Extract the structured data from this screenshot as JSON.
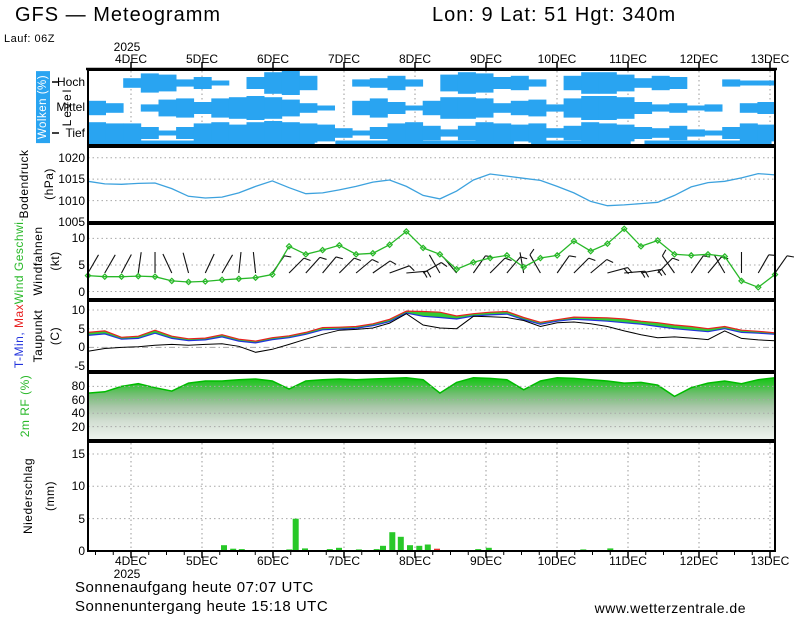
{
  "header": {
    "title": "GFS — Meteogramm",
    "location": "Lon: 9 Lat: 51 Hgt: 340m",
    "run": "Lauf: 06Z"
  },
  "footer": {
    "sunrise": "Sonnenaufgang heute 07:07 UTC",
    "sunset": "Sonnenuntergang heute 15:18 UTC",
    "website": "www.wetterzentrale.de"
  },
  "time_axis": {
    "year": "2025",
    "dates": [
      "4DEC",
      "5DEC",
      "6DEC",
      "7DEC",
      "8DEC",
      "9DEC",
      "10DEC",
      "11DEC",
      "12DEC",
      "13DEC"
    ],
    "start_day": 3.394,
    "end_day": 13.07
  },
  "colors": {
    "cloud_blue": "#29A4F1",
    "pressure_line": "#3DA2DE",
    "green": "#28B828",
    "temp_fill": "#33CC33",
    "tmax_red": "#E82020",
    "tmin_blue": "#2233DD",
    "dew_black": "#000000",
    "precip_green": "#28C828",
    "precip_red": "#E83030",
    "grid_gray": "#A8A8A8"
  },
  "chart_data": [
    {
      "id": "clouds",
      "type": "heatmap",
      "title": "Wolken (%)",
      "ylabel": "Level",
      "categories_y": [
        "Hoch",
        "Mittel",
        "Tief"
      ],
      "series": [
        {
          "name": "Hoch",
          "values": [
            0,
            0,
            0.4,
            0.8,
            0.7,
            0.3,
            0.5,
            0.2,
            0,
            0.5,
            0.9,
            1,
            0.6,
            0,
            0,
            0.3,
            0.4,
            0.6,
            0.3,
            0,
            0.7,
            0.9,
            0.8,
            0.5,
            0.6,
            0.3,
            0,
            0.6,
            0.9,
            0.9,
            0.7,
            0.4,
            0.6,
            0.5,
            0,
            0,
            0.3,
            0.1,
            0.1
          ]
        },
        {
          "name": "Mittel",
          "values": [
            0.6,
            0.4,
            0,
            0.3,
            0.7,
            0.8,
            0.5,
            0.8,
            0.9,
            1,
            0.9,
            0.7,
            0.4,
            0.2,
            0,
            0.6,
            0.8,
            0.5,
            0.2,
            0.6,
            0.9,
            0.9,
            0.8,
            0.4,
            0.6,
            0.7,
            0.3,
            0.8,
            1,
            1,
            0.9,
            0.5,
            0.3,
            0.4,
            0.2,
            0.3,
            0,
            0.4,
            0.5
          ]
        },
        {
          "name": "Tief",
          "values": [
            0.9,
            0.8,
            0.8,
            0.5,
            0.2,
            0.5,
            0.8,
            0.9,
            0.7,
            0.9,
            1,
            0.9,
            0.8,
            0.7,
            0.4,
            0.2,
            0.5,
            0.8,
            0.9,
            0.6,
            0.3,
            0.6,
            0.9,
            0.8,
            0.7,
            0.8,
            0.4,
            0.6,
            0.9,
            0.8,
            0.7,
            0.5,
            0.4,
            0.6,
            0.3,
            0.2,
            0.5,
            0.8,
            0.7
          ]
        }
      ],
      "bottom_strip_segments": [
        [
          0,
          0.33
        ],
        [
          0.36,
          0.62
        ],
        [
          0.645,
          0.79
        ],
        [
          0.81,
          0.995
        ]
      ]
    },
    {
      "id": "pressure",
      "type": "line",
      "ylabel": "Bodendruck",
      "unit": "(hPa)",
      "yticks": [
        1020,
        1015,
        1010,
        1005
      ],
      "ylim": [
        1005,
        1022.5
      ],
      "values": [
        1014.5,
        1013.9,
        1013.8,
        1014.0,
        1014.1,
        1012.8,
        1011.0,
        1010.6,
        1010.8,
        1011.8,
        1013.3,
        1014.6,
        1013.0,
        1011.6,
        1011.8,
        1012.5,
        1013.3,
        1014.3,
        1014.8,
        1013.3,
        1011.2,
        1010.4,
        1012.2,
        1014.8,
        1016.2,
        1015.7,
        1015.2,
        1014.7,
        1013.3,
        1011.8,
        1009.8,
        1008.8,
        1009.0,
        1009.3,
        1009.6,
        1011.2,
        1013.2,
        1014.2,
        1014.5,
        1015.3,
        1016.3,
        1016.0
      ]
    },
    {
      "id": "wind",
      "type": "line",
      "ylabel_speed": "Wind Geschwi.",
      "ylabel_barbs": "Windfahnen",
      "unit": "(kt)",
      "yticks": [
        10,
        5,
        0
      ],
      "ylim": [
        -1.4,
        12.7
      ],
      "values": [
        3.0,
        2.8,
        2.8,
        2.9,
        2.8,
        2.0,
        1.8,
        1.9,
        2.2,
        2.4,
        2.6,
        3.2,
        8.5,
        7.0,
        7.8,
        8.7,
        7.0,
        7.2,
        8.8,
        11.3,
        8.2,
        7.0,
        4.2,
        5.5,
        6.3,
        6.8,
        4.6,
        6.3,
        6.8,
        9.5,
        7.6,
        9.0,
        11.8,
        8.5,
        9.6,
        7.0,
        6.8,
        7.0,
        6.6,
        2.0,
        0.8,
        3.2
      ],
      "barb_angles": [
        30,
        30,
        28,
        8,
        0,
        -25,
        -15,
        25,
        30,
        6,
        -6,
        35,
        45,
        42,
        40,
        45,
        50,
        55,
        70,
        85,
        60,
        -30,
        -40,
        35,
        45,
        40,
        -10,
        -30,
        35,
        45,
        50,
        75,
        85,
        80,
        45,
        -35,
        35,
        40,
        -30,
        0,
        30,
        35
      ],
      "barb_ticks": [
        0,
        0,
        0,
        0,
        0,
        0,
        0,
        0,
        0,
        0,
        0,
        1,
        1,
        1,
        1,
        1,
        1,
        1,
        1,
        2,
        1,
        0,
        0,
        1,
        1,
        1,
        0,
        1,
        1,
        1,
        1,
        2,
        2,
        2,
        1,
        1,
        1,
        1,
        0,
        0,
        1,
        1
      ]
    },
    {
      "id": "temperature",
      "type": "line",
      "labels": {
        "min": "T-Min, ",
        "max": "Max",
        "dew": "Taupunkt",
        "unit": "(C)"
      },
      "yticks": [
        10,
        5,
        0,
        -5
      ],
      "ylim": [
        -6.3,
        12.4
      ],
      "series": [
        {
          "name": "Tmax",
          "values": [
            4.0,
            4.4,
            2.7,
            3.0,
            4.6,
            3.0,
            2.3,
            2.5,
            3.4,
            2.2,
            1.7,
            2.6,
            3.1,
            4.0,
            5.3,
            5.4,
            5.6,
            6.3,
            7.5,
            9.7,
            9.6,
            9.4,
            8.4,
            9.0,
            9.4,
            9.6,
            8.0,
            6.7,
            7.4,
            8.1,
            8.0,
            7.9,
            7.6,
            7.0,
            6.6,
            6.0,
            5.6,
            5.0,
            5.6,
            4.6,
            4.3,
            3.9
          ]
        },
        {
          "name": "Tmin",
          "values": [
            3.2,
            3.6,
            2.2,
            2.4,
            3.8,
            2.4,
            1.8,
            2.0,
            2.8,
            1.7,
            1.2,
            2.1,
            2.6,
            3.5,
            4.7,
            4.9,
            5.1,
            5.8,
            6.9,
            9.2,
            8.3,
            8.0,
            7.6,
            8.4,
            8.7,
            8.9,
            7.4,
            6.2,
            7.0,
            7.5,
            7.3,
            7.0,
            6.6,
            6.2,
            5.6,
            5.0,
            4.6,
            4.2,
            5.0,
            4.0,
            3.8,
            3.5
          ]
        },
        {
          "name": "Taupunkt",
          "values": [
            -1.0,
            -0.3,
            0.0,
            0.2,
            0.6,
            0.8,
            0.6,
            0.8,
            1.0,
            0.3,
            -1.3,
            -0.5,
            0.8,
            2.2,
            3.5,
            4.6,
            4.8,
            5.2,
            6.5,
            9.0,
            6.0,
            5.2,
            5.0,
            8.3,
            8.2,
            8.0,
            7.2,
            5.6,
            6.6,
            6.8,
            6.3,
            5.6,
            4.4,
            3.4,
            2.6,
            2.8,
            2.5,
            2.1,
            4.4,
            2.4,
            2.0,
            1.8
          ]
        }
      ]
    },
    {
      "id": "humidity",
      "type": "area",
      "ylabel": "2m RF (%)",
      "yticks": [
        80,
        60,
        40,
        20
      ],
      "ylim": [
        0,
        100
      ],
      "values": [
        70,
        72,
        80,
        84,
        78,
        73,
        85,
        88,
        88,
        90,
        91,
        88,
        76,
        88,
        90,
        91,
        90,
        91,
        92,
        93,
        90,
        70,
        86,
        93,
        92,
        90,
        75,
        88,
        93,
        92,
        90,
        88,
        85,
        86,
        82,
        65,
        78,
        85,
        88,
        84,
        90,
        93
      ]
    },
    {
      "id": "precip",
      "type": "bar",
      "ylabel": "Niederschlag",
      "unit": "(mm)",
      "yticks": [
        15,
        10,
        5,
        0
      ],
      "ylim": [
        0,
        16.85
      ],
      "bars": [
        {
          "day": 5.31,
          "mm": 0.9,
          "color": "green"
        },
        {
          "day": 5.44,
          "mm": 0.35,
          "color": "green"
        },
        {
          "day": 5.56,
          "mm": 0.3,
          "color": "green"
        },
        {
          "day": 6.23,
          "mm": 0.25,
          "color": "green"
        },
        {
          "day": 6.32,
          "mm": 5.0,
          "color": "green"
        },
        {
          "day": 6.45,
          "mm": 0.4,
          "color": "green"
        },
        {
          "day": 6.8,
          "mm": 0.3,
          "color": "green"
        },
        {
          "day": 6.93,
          "mm": 0.5,
          "color": "green"
        },
        {
          "day": 7.21,
          "mm": 0.25,
          "color": "green"
        },
        {
          "day": 7.46,
          "mm": 0.3,
          "color": "green"
        },
        {
          "day": 7.55,
          "mm": 0.8,
          "color": "green"
        },
        {
          "day": 7.68,
          "mm": 2.9,
          "color": "green"
        },
        {
          "day": 7.8,
          "mm": 2.2,
          "color": "green"
        },
        {
          "day": 7.93,
          "mm": 0.9,
          "color": "green"
        },
        {
          "day": 8.06,
          "mm": 0.8,
          "color": "green"
        },
        {
          "day": 8.18,
          "mm": 1.0,
          "color": "green"
        },
        {
          "day": 8.31,
          "mm": 0.35,
          "color": "red"
        },
        {
          "day": 8.89,
          "mm": 0.3,
          "color": "green"
        },
        {
          "day": 9.04,
          "mm": 0.5,
          "color": "green"
        },
        {
          "day": 10.37,
          "mm": 0.25,
          "color": "green"
        },
        {
          "day": 10.49,
          "mm": 0.15,
          "color": "red"
        },
        {
          "day": 10.75,
          "mm": 0.4,
          "color": "green"
        },
        {
          "day": 10.96,
          "mm": 0.12,
          "color": "red"
        },
        {
          "day": 11.17,
          "mm": 0.12,
          "color": "red"
        },
        {
          "day": 11.34,
          "mm": 0.12,
          "color": "red"
        },
        {
          "day": 11.45,
          "mm": 0.12,
          "color": "red"
        }
      ]
    }
  ]
}
